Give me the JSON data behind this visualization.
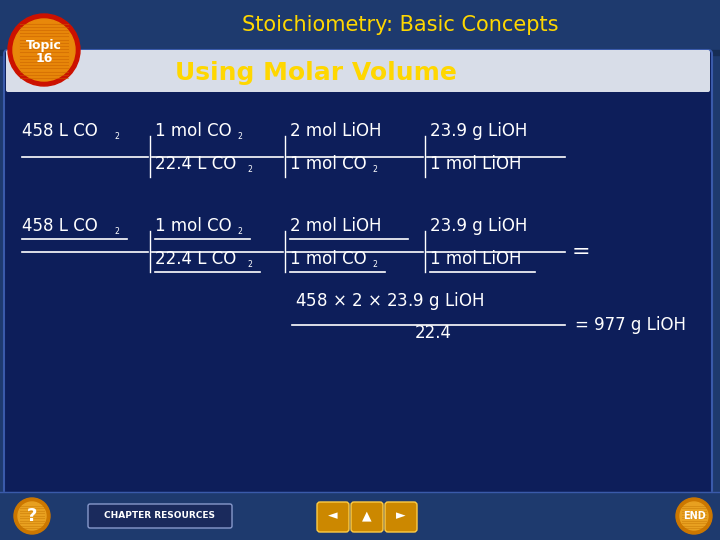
{
  "title": "Stoichiometry: Basic Concepts",
  "subtitle": "Using Molar Volume",
  "title_color": "#FFD700",
  "subtitle_color": "#FFD700",
  "text_color": "#FFFFFF",
  "topic_text_line1": "Topic",
  "topic_text_line2": "16",
  "outer_bg": "#1e3a6e",
  "top_bar_bg": "#1e3a6e",
  "panel_bg": "#0a1f5c",
  "panel_border": "#3a5a9a",
  "bottom_bar_bg": "#1e3a6e",
  "circle_orange": "#e8a020",
  "circle_red": "#cc2200"
}
